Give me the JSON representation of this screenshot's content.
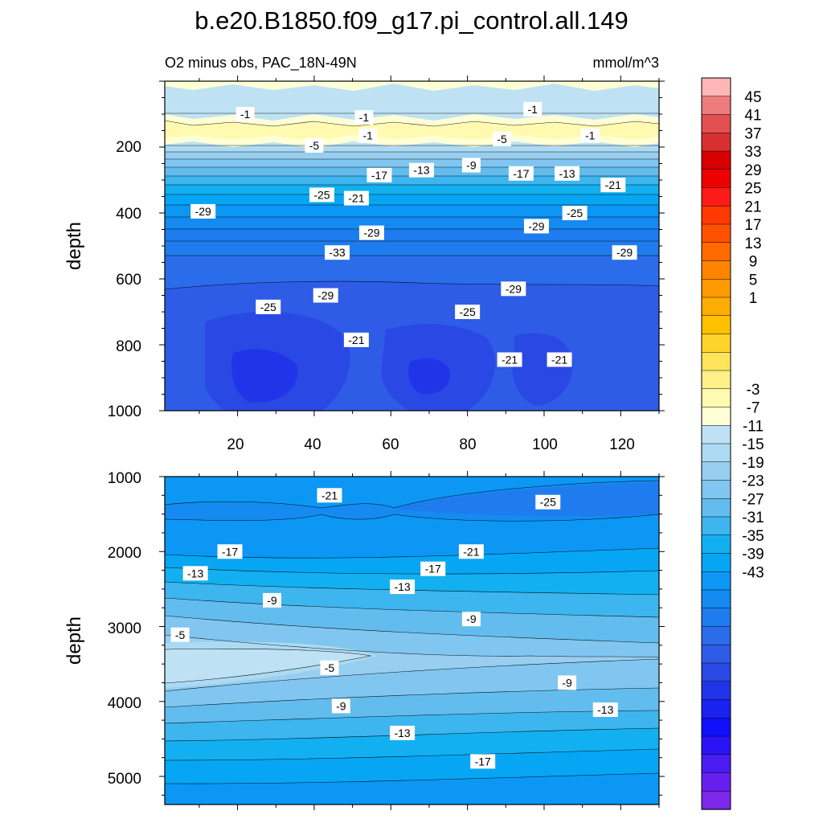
{
  "title": "b.e20.B1850.f09_g17.pi_control.all.149",
  "subtitle_left": "O2 minus obs, PAC_18N-49N",
  "subtitle_right": "mmol/m^3",
  "chart_data": [
    {
      "type": "heatmap",
      "panel": "upper",
      "ylabel": "depth",
      "xlim": [
        1,
        130
      ],
      "ylim": [
        1000,
        0
      ],
      "x_ticks": [
        "20",
        "40",
        "60",
        "80",
        "100",
        "120"
      ],
      "y_ticks": [
        "200",
        "400",
        "600",
        "800",
        "1000"
      ],
      "contour_labels": [
        {
          "text": "-1",
          "x": 22,
          "y": 100
        },
        {
          "text": "-1",
          "x": 53,
          "y": 110
        },
        {
          "text": "-1",
          "x": 54,
          "y": 165
        },
        {
          "text": "-1",
          "x": 97,
          "y": 85
        },
        {
          "text": "-1",
          "x": 112,
          "y": 165
        },
        {
          "text": "-5",
          "x": 40,
          "y": 195
        },
        {
          "text": "-5",
          "x": 89,
          "y": 175
        },
        {
          "text": "-17",
          "x": 57,
          "y": 285
        },
        {
          "text": "-13",
          "x": 68,
          "y": 270
        },
        {
          "text": "-9",
          "x": 81,
          "y": 255
        },
        {
          "text": "-17",
          "x": 94,
          "y": 280
        },
        {
          "text": "-13",
          "x": 106,
          "y": 280
        },
        {
          "text": "-21",
          "x": 118,
          "y": 315
        },
        {
          "text": "-25",
          "x": 42,
          "y": 345
        },
        {
          "text": "-21",
          "x": 51,
          "y": 355
        },
        {
          "text": "-29",
          "x": 11,
          "y": 395
        },
        {
          "text": "-25",
          "x": 108,
          "y": 400
        },
        {
          "text": "-29",
          "x": 55,
          "y": 460
        },
        {
          "text": "-29",
          "x": 98,
          "y": 440
        },
        {
          "text": "-33",
          "x": 46,
          "y": 520
        },
        {
          "text": "-29",
          "x": 121,
          "y": 520
        },
        {
          "text": "-29",
          "x": 43,
          "y": 650
        },
        {
          "text": "-29",
          "x": 92,
          "y": 630
        },
        {
          "text": "-25",
          "x": 28,
          "y": 685
        },
        {
          "text": "-25",
          "x": 80,
          "y": 700
        },
        {
          "text": "-21",
          "x": 51,
          "y": 785
        },
        {
          "text": "-21",
          "x": 91,
          "y": 845
        },
        {
          "text": "-21",
          "x": 104,
          "y": 845
        }
      ]
    },
    {
      "type": "heatmap",
      "panel": "lower",
      "ylabel": "depth",
      "xlim": [
        1,
        130
      ],
      "ylim": [
        5375,
        1000
      ],
      "y_ticks": [
        "1000",
        "2000",
        "3000",
        "4000",
        "5000"
      ],
      "contour_labels": [
        {
          "text": "-21",
          "x": 44,
          "y": 1250
        },
        {
          "text": "-25",
          "x": 101,
          "y": 1340
        },
        {
          "text": "-17",
          "x": 18,
          "y": 2000
        },
        {
          "text": "-13",
          "x": 9,
          "y": 2290
        },
        {
          "text": "-21",
          "x": 81,
          "y": 2000
        },
        {
          "text": "-17",
          "x": 71,
          "y": 2230
        },
        {
          "text": "-13",
          "x": 63,
          "y": 2470
        },
        {
          "text": "-9",
          "x": 29,
          "y": 2650
        },
        {
          "text": "-9",
          "x": 81,
          "y": 2900
        },
        {
          "text": "-5",
          "x": 5,
          "y": 3110
        },
        {
          "text": "-5",
          "x": 44,
          "y": 3550
        },
        {
          "text": "-9",
          "x": 106,
          "y": 3750
        },
        {
          "text": "-9",
          "x": 47,
          "y": 4060
        },
        {
          "text": "-13",
          "x": 63,
          "y": 4420
        },
        {
          "text": "-13",
          "x": 116,
          "y": 4110
        },
        {
          "text": "-17",
          "x": 84,
          "y": 4800
        }
      ]
    }
  ],
  "colorbar": {
    "labels": [
      "45",
      "41",
      "37",
      "33",
      "29",
      "25",
      "21",
      "17",
      "13",
      "9",
      "5",
      "1",
      "-3",
      "-7",
      "-11",
      "-15",
      "-19",
      "-23",
      "-27",
      "-31",
      "-35",
      "-39",
      "-43"
    ],
    "colors": [
      "#FFB6B6",
      "#EE7C7C",
      "#E25050",
      "#D83030",
      "#D80000",
      "#EE0000",
      "#FF1A1A",
      "#FF3A00",
      "#FF5200",
      "#FF6A00",
      "#FF8400",
      "#FF9A00",
      "#FFAC00",
      "#FFC000",
      "#FFD42A",
      "#FFE45C",
      "#FFF08A",
      "#FFFAB0",
      "#FFFFD6",
      "#BEE2F4",
      "#ACDAF2",
      "#98CEF0",
      "#80C6F0",
      "#62BDEE",
      "#3DB5EE",
      "#12B0F0",
      "#06A6F4",
      "#0C97F4",
      "#158AF0",
      "#1F7CEE",
      "#2A6CEA",
      "#2E5CE6",
      "#2A48E4",
      "#2234E8",
      "#1A22F0",
      "#1010FA",
      "#2A14F6",
      "#4A1CF2",
      "#6620EE",
      "#7C28EA"
    ]
  }
}
